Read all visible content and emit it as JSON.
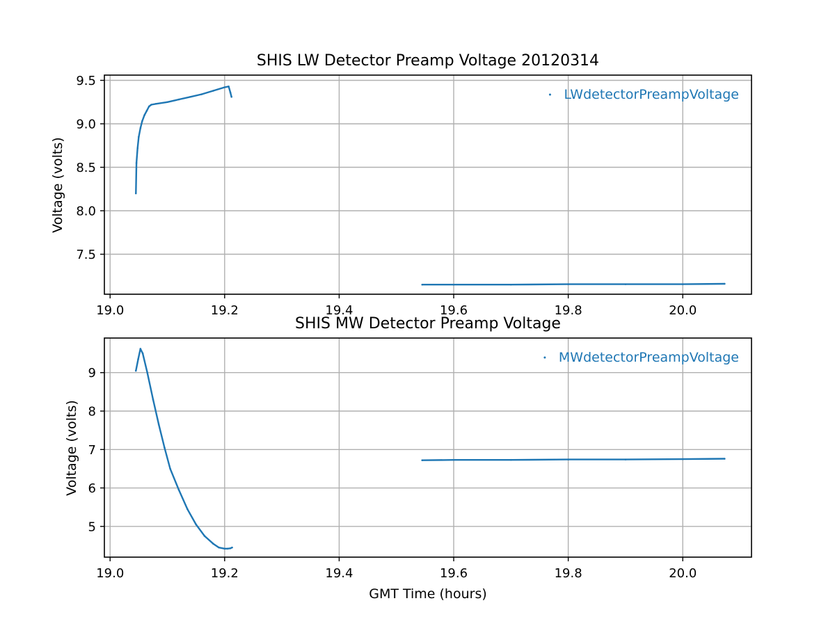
{
  "chart_data": [
    {
      "type": "scatter",
      "title": "SHIS LW Detector Preamp Voltage 20120314",
      "xlabel": "",
      "ylabel": "Voltage (volts)",
      "xlim": [
        18.99,
        20.12
      ],
      "ylim": [
        7.04,
        9.56
      ],
      "xticks": [
        19.0,
        19.2,
        19.4,
        19.6,
        19.8,
        20.0
      ],
      "xtick_labels": [
        "19.0",
        "19.2",
        "19.4",
        "19.6",
        "19.8",
        "20.0"
      ],
      "yticks": [
        7.5,
        8.0,
        8.5,
        9.0,
        9.5
      ],
      "ytick_labels": [
        "7.5",
        "8.0",
        "8.5",
        "9.0",
        "9.5"
      ],
      "grid": true,
      "legend_position": "top-right",
      "color": "#1f77b4",
      "series": [
        {
          "name": "LWdetectorPreampVoltage",
          "segments": [
            {
              "x": [
                19.045,
                19.046,
                19.048,
                19.05,
                19.053,
                19.056,
                19.06,
                19.064,
                19.068,
                19.072,
                19.08,
                19.1,
                19.12,
                19.14,
                19.16,
                19.18,
                19.2,
                19.207,
                19.21,
                19.212
              ],
              "y": [
                8.2,
                8.55,
                8.72,
                8.85,
                8.95,
                9.03,
                9.1,
                9.15,
                9.2,
                9.22,
                9.23,
                9.25,
                9.28,
                9.31,
                9.34,
                9.38,
                9.42,
                9.43,
                9.36,
                9.31
              ]
            },
            {
              "x": [
                19.545,
                19.6,
                19.7,
                19.8,
                19.9,
                20.0,
                20.073
              ],
              "y": [
                7.15,
                7.15,
                7.15,
                7.155,
                7.155,
                7.155,
                7.16
              ]
            }
          ]
        }
      ]
    },
    {
      "type": "scatter",
      "title": "SHIS MW Detector Preamp Voltage",
      "xlabel": "GMT Time (hours)",
      "ylabel": "Voltage (volts)",
      "xlim": [
        18.99,
        20.12
      ],
      "ylim": [
        4.2,
        9.9
      ],
      "xticks": [
        19.0,
        19.2,
        19.4,
        19.6,
        19.8,
        20.0
      ],
      "xtick_labels": [
        "19.0",
        "19.2",
        "19.4",
        "19.6",
        "19.8",
        "20.0"
      ],
      "yticks": [
        5,
        6,
        7,
        8,
        9
      ],
      "ytick_labels": [
        "5",
        "6",
        "7",
        "8",
        "9"
      ],
      "grid": true,
      "legend_position": "top-right",
      "color": "#1f77b4",
      "series": [
        {
          "name": "MWdetectorPreampVoltage",
          "segments": [
            {
              "x": [
                19.045,
                19.049,
                19.053,
                19.057,
                19.065,
                19.075,
                19.085,
                19.095,
                19.105,
                19.12,
                19.135,
                19.15,
                19.165,
                19.18,
                19.19,
                19.2,
                19.205,
                19.21,
                19.213
              ],
              "y": [
                9.05,
                9.35,
                9.62,
                9.5,
                9.0,
                8.3,
                7.65,
                7.05,
                6.5,
                5.95,
                5.45,
                5.05,
                4.75,
                4.55,
                4.45,
                4.42,
                4.42,
                4.43,
                4.45
              ]
            },
            {
              "x": [
                19.545,
                19.6,
                19.7,
                19.8,
                19.9,
                20.0,
                20.073
              ],
              "y": [
                6.72,
                6.73,
                6.73,
                6.74,
                6.74,
                6.75,
                6.76
              ]
            }
          ]
        }
      ]
    }
  ]
}
